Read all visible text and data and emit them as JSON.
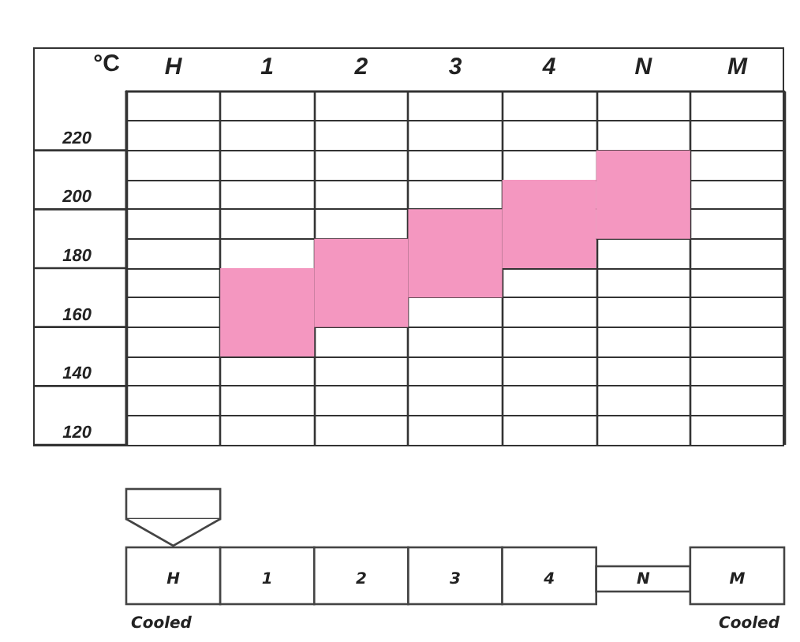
{
  "chart_data": {
    "type": "bar",
    "ylabel": "°C",
    "categories": [
      "H",
      "1",
      "2",
      "3",
      "4",
      "N",
      "M"
    ],
    "base": [
      null,
      150,
      160,
      170,
      180,
      190,
      null
    ],
    "values": [
      null,
      30,
      30,
      30,
      30,
      30,
      null
    ],
    "color": "#f497c0",
    "ylim": [
      120,
      240
    ],
    "yticks": [
      120,
      {
        "value": 130,
        "label": null
      },
      140,
      {
        "value": 150,
        "label": null
      },
      160,
      {
        "value": 170,
        "label": null
      },
      180,
      {
        "value": 190,
        "label": null
      },
      200,
      {
        "value": 210,
        "label": null
      },
      220,
      {
        "value": 230,
        "label": null
      }
    ],
    "grid": true,
    "annotations": [
      "Cooled",
      "Cooled"
    ]
  }
}
